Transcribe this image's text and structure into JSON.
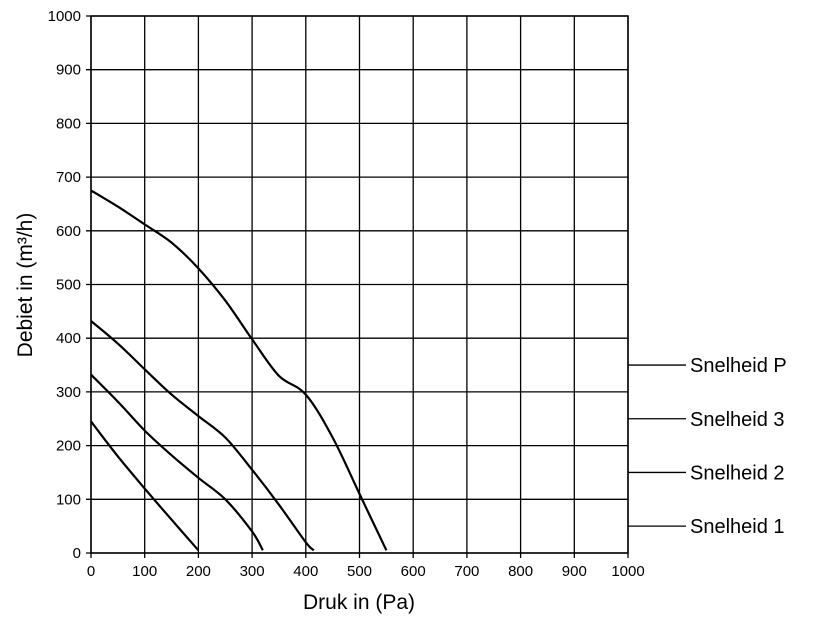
{
  "chart_data": {
    "type": "line",
    "title": "",
    "xlabel": "Druk in (Pa)",
    "ylabel": "Debiet in (m³/h)",
    "xlim": [
      0,
      1000
    ],
    "ylim": [
      0,
      1000
    ],
    "grid": true,
    "x_ticks": [
      "0",
      "100",
      "200",
      "300",
      "400",
      "500",
      "600",
      "700",
      "800",
      "900",
      "1000"
    ],
    "y_ticks": [
      "0",
      "100",
      "200",
      "300",
      "400",
      "500",
      "600",
      "700",
      "800",
      "900",
      "1000"
    ],
    "legend_position": "right",
    "series": [
      {
        "name": "Snelheid P",
        "label_y": 350,
        "points": [
          [
            0,
            675
          ],
          [
            50,
            645
          ],
          [
            100,
            612
          ],
          [
            150,
            578
          ],
          [
            200,
            530
          ],
          [
            250,
            470
          ],
          [
            300,
            398
          ],
          [
            350,
            330
          ],
          [
            400,
            295
          ],
          [
            450,
            215
          ],
          [
            500,
            110
          ],
          [
            550,
            5
          ]
        ]
      },
      {
        "name": "Snelheid 3",
        "label_y": 250,
        "points": [
          [
            0,
            432
          ],
          [
            50,
            390
          ],
          [
            100,
            342
          ],
          [
            150,
            295
          ],
          [
            200,
            255
          ],
          [
            250,
            215
          ],
          [
            300,
            155
          ],
          [
            350,
            90
          ],
          [
            400,
            20
          ],
          [
            415,
            5
          ]
        ]
      },
      {
        "name": "Snelheid 2",
        "label_y": 150,
        "points": [
          [
            0,
            332
          ],
          [
            50,
            282
          ],
          [
            100,
            228
          ],
          [
            150,
            182
          ],
          [
            200,
            140
          ],
          [
            250,
            100
          ],
          [
            300,
            40
          ],
          [
            320,
            5
          ]
        ]
      },
      {
        "name": "Snelheid 1",
        "label_y": 50,
        "points": [
          [
            0,
            245
          ],
          [
            50,
            180
          ],
          [
            100,
            120
          ],
          [
            150,
            62
          ],
          [
            200,
            5
          ]
        ]
      }
    ]
  }
}
